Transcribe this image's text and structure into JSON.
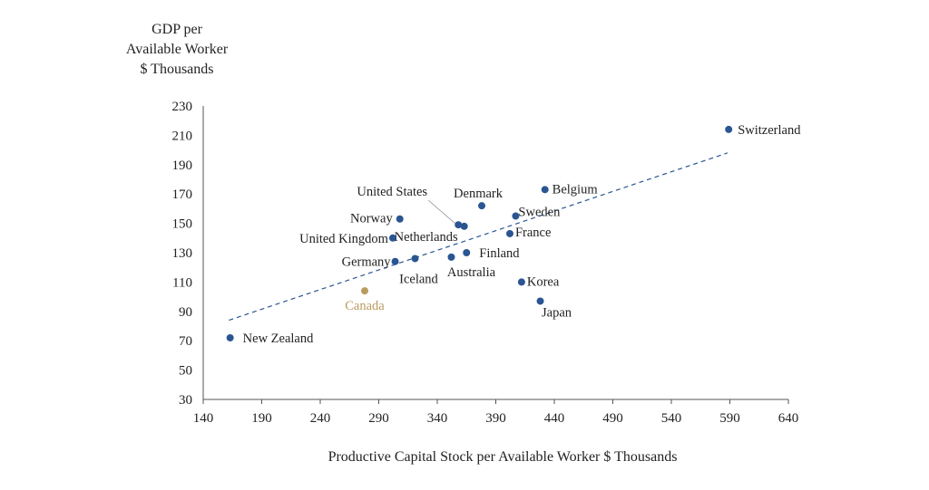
{
  "chart_data": {
    "type": "scatter",
    "title": "",
    "ylabel_lines": [
      "GDP per",
      "Available Worker",
      "$ Thousands"
    ],
    "xlabel": "Productive Capital Stock per Available Worker $ Thousands",
    "xlim": [
      140,
      640
    ],
    "ylim": [
      30,
      230
    ],
    "xticks": [
      "140",
      "190",
      "240",
      "290",
      "340",
      "390",
      "440",
      "490",
      "540",
      "590",
      "640"
    ],
    "yticks": [
      "30",
      "50",
      "70",
      "90",
      "110",
      "130",
      "150",
      "170",
      "190",
      "210",
      "230"
    ],
    "grid": false,
    "point_color": "#2a5592",
    "highlight_color": "#b99b61",
    "trendline": {
      "style": "dashed",
      "from": [
        162,
        84
      ],
      "to": [
        588,
        198
      ]
    },
    "points": [
      {
        "name": "Switzerland",
        "x": 589,
        "y": 214
      },
      {
        "name": "Belgium",
        "x": 432,
        "y": 173
      },
      {
        "name": "Denmark",
        "x": 378,
        "y": 162
      },
      {
        "name": "Sweden",
        "x": 407,
        "y": 155
      },
      {
        "name": "United States",
        "x": 358,
        "y": 149
      },
      {
        "name": "Netherlands",
        "x": 363,
        "y": 148
      },
      {
        "name": "Norway",
        "x": 308,
        "y": 153
      },
      {
        "name": "France",
        "x": 402,
        "y": 143
      },
      {
        "name": "United Kingdom",
        "x": 302,
        "y": 140
      },
      {
        "name": "Finland",
        "x": 365,
        "y": 130
      },
      {
        "name": "Australia",
        "x": 352,
        "y": 127
      },
      {
        "name": "Iceland",
        "x": 321,
        "y": 126
      },
      {
        "name": "Germany",
        "x": 304,
        "y": 124
      },
      {
        "name": "Korea",
        "x": 412,
        "y": 110
      },
      {
        "name": "Canada",
        "x": 278,
        "y": 104,
        "highlight": true
      },
      {
        "name": "Japan",
        "x": 428,
        "y": 97
      },
      {
        "name": "New Zealand",
        "x": 163,
        "y": 72
      }
    ]
  }
}
